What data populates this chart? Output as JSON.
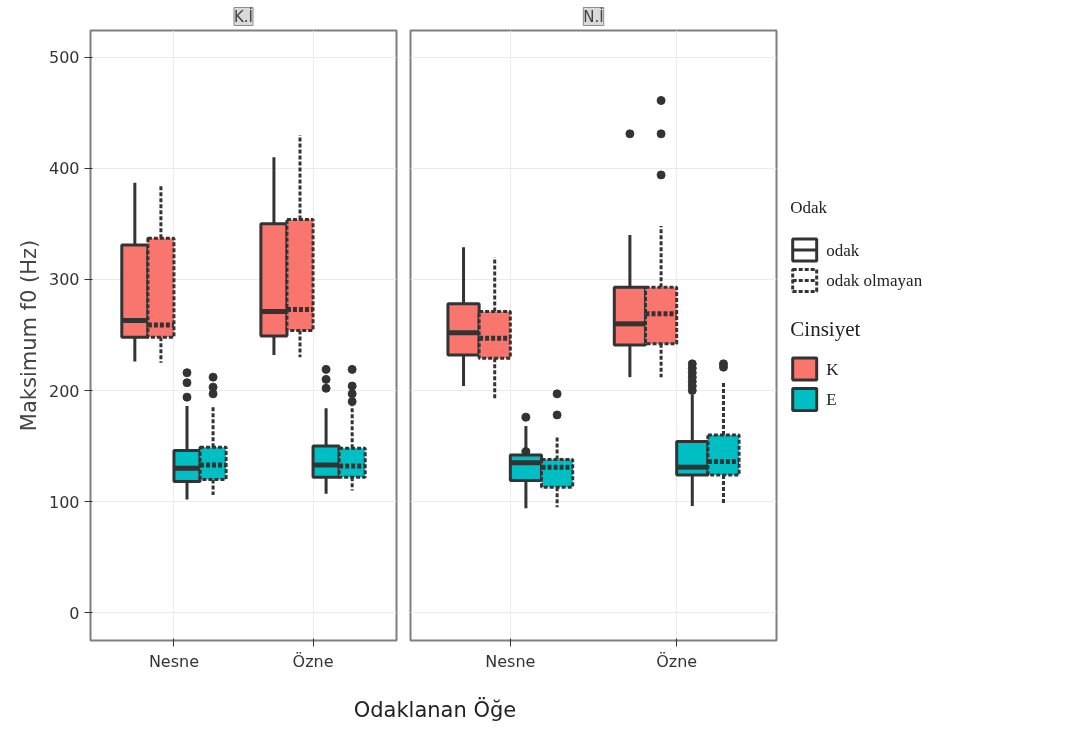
{
  "chart_data": [
    {
      "type": "box",
      "title": "K.İ",
      "ylabel": "Maksimum f0 (Hz)",
      "xlabel": "Odaklanan Öğe",
      "categories": [
        "Nesne",
        "Özne"
      ],
      "ylim": [
        -25,
        524
      ],
      "yticks": [
        0,
        100,
        200,
        300,
        400,
        500
      ],
      "grid": true,
      "legend": "right",
      "legend_title": "Cinsiyet",
      "annotations": [
        "Odak",
        "odak",
        "odak olmayan"
      ],
      "series": [
        {
          "name": "K",
          "color": "#f8766d",
          "line_style": "solid",
          "boxes": [
            {
              "low": 226,
              "q1": 248,
              "median": 263,
              "q3": 331,
              "high": 387
            },
            {
              "low": 232,
              "q1": 249,
              "median": 271,
              "q3": 350,
              "high": 410
            }
          ]
        },
        {
          "color": "#f8766d",
          "line_style": "dashed",
          "boxes": [
            {
              "low": 225,
              "q1": 248,
              "median": 259,
              "q3": 337,
              "high": 385
            },
            {
              "low": 230,
              "q1": 254,
              "median": 273,
              "q3": 354,
              "high": 430
            }
          ]
        },
        {
          "name": "E",
          "color": "#00bfc4",
          "line_style": "solid",
          "boxes": [
            {
              "low": 102,
              "q1": 118,
              "median": 130,
              "q3": 146,
              "high": 186,
              "outliers": [
                216,
                207,
                194
              ]
            },
            {
              "low": 107,
              "q1": 122,
              "median": 133,
              "q3": 150,
              "high": 184,
              "outliers": [
                219,
                210,
                202
              ]
            }
          ]
        },
        {
          "color": "#00bfc4",
          "line_style": "dashed",
          "boxes": [
            {
              "low": 106,
              "q1": 120,
              "median": 133,
              "q3": 149,
              "high": 185,
              "outliers": [
                212,
                203,
                197
              ]
            },
            {
              "low": 110,
              "q1": 122,
              "median": 132,
              "q3": 148,
              "high": 186,
              "outliers": [
                219,
                204,
                197,
                190
              ]
            }
          ]
        }
      ]
    },
    {
      "type": "box",
      "title": "N.İ",
      "categories": [
        "Nesne",
        "Özne"
      ],
      "ylim": [
        -25,
        524
      ],
      "yticks": [
        0,
        100,
        200,
        300,
        400,
        500
      ],
      "grid": true,
      "tick_labels": "x",
      "series": [
        {
          "color": "#f8766d",
          "line_style": "solid",
          "boxes": [
            {
              "low": 204,
              "q1": 232,
              "median": 252,
              "q3": 278,
              "high": 329
            },
            {
              "low": 212,
              "q1": 241,
              "median": 260,
              "q3": 293,
              "high": 340,
              "outliers": [
                431
              ]
            }
          ]
        },
        {
          "color": "#f8766d",
          "line_style": "dashed",
          "boxes": [
            {
              "low": 193,
              "q1": 229,
              "median": 247,
              "q3": 271,
              "high": 320
            },
            {
              "low": 212,
              "q1": 242,
              "median": 269,
              "q3": 293,
              "high": 348,
              "outliers": [
                461,
                431,
                394
              ]
            }
          ]
        },
        {
          "color": "#00bfc4",
          "line_style": "solid",
          "boxes": [
            {
              "low": 94,
              "q1": 119,
              "median": 135,
              "q3": 142,
              "high": 168,
              "outliers": [
                176,
                145
              ]
            },
            {
              "low": 96,
              "q1": 124,
              "median": 131,
              "q3": 154,
              "high": 196,
              "outliers": [
                224,
                220,
                216,
                212,
                208,
                204,
                200
              ]
            }
          ]
        },
        {
          "color": "#00bfc4",
          "line_style": "dashed",
          "boxes": [
            {
              "low": 95,
              "q1": 113,
              "median": 131,
              "q3": 138,
              "high": 158,
              "outliers": [
                197,
                178
              ]
            },
            {
              "low": 98,
              "q1": 124,
              "median": 136,
              "q3": 160,
              "high": 208,
              "outliers": [
                224,
                221
              ]
            }
          ]
        }
      ]
    }
  ]
}
